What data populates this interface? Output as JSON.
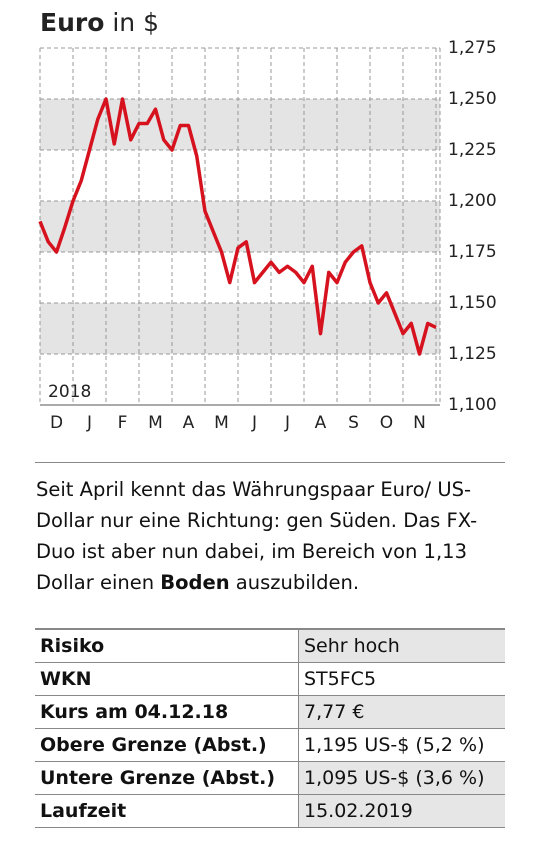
{
  "chart_data": {
    "type": "line",
    "title": [
      "Euro",
      "in $"
    ],
    "annotation": "2018",
    "categories": [
      null,
      null,
      "D",
      null,
      null,
      null,
      "J",
      null,
      null,
      null,
      "F",
      null,
      null,
      null,
      "M",
      null,
      null,
      null,
      "A",
      null,
      null,
      null,
      "M",
      null,
      null,
      null,
      "J",
      null,
      null,
      null,
      "J",
      null,
      null,
      null,
      "A",
      null,
      null,
      null,
      "S",
      null,
      null,
      null,
      "O",
      null,
      null,
      null,
      "N",
      null,
      null
    ],
    "series": [
      {
        "name": "Euro",
        "color": "#d7121f",
        "values": [
          1.19,
          1.18,
          1.175,
          1.187,
          1.2,
          1.21,
          1.225,
          1.24,
          1.25,
          1.228,
          1.25,
          1.23,
          1.238,
          1.238,
          1.245,
          1.23,
          1.225,
          1.237,
          1.237,
          1.222,
          1.195,
          1.185,
          1.175,
          1.16,
          1.177,
          1.18,
          1.16,
          1.165,
          1.17,
          1.165,
          1.168,
          1.165,
          1.16,
          1.168,
          1.135,
          1.165,
          1.16,
          1.17,
          1.175,
          1.178,
          1.16,
          1.15,
          1.155,
          1.145,
          1.135,
          1.14,
          1.125,
          1.14,
          1.138
        ]
      }
    ],
    "ylim": [
      1.1,
      1.275
    ],
    "yticks": [
      {
        "value": 1.1,
        "label": "1,100"
      },
      {
        "value": 1.125,
        "label": "1,125"
      },
      {
        "value": 1.15,
        "label": "1,150"
      },
      {
        "value": 1.175,
        "label": "1,175"
      },
      {
        "value": 1.2,
        "label": "1,200"
      },
      {
        "value": 1.225,
        "label": "1,225"
      },
      {
        "value": 1.25,
        "label": "1,250"
      },
      {
        "value": 1.275,
        "label": "1,275"
      }
    ],
    "grid": true
  },
  "paragraph": [
    "Seit April kennt das Währungspaar Euro/ US-Dollar nur eine Richtung: gen Süden. Das FX-Duo ist aber nun dabei, im Bereich von 1,13 Dollar einen ",
    "Boden",
    " auszubilden."
  ],
  "table": {
    "rows": [
      [
        "Risiko",
        "Sehr hoch"
      ],
      [
        "WKN",
        "ST5FC5"
      ],
      [
        "Kurs am 04.12.18",
        "7,77 €"
      ],
      [
        "Obere Grenze (Abst.)",
        "1,195 US-$ (5,2 %)"
      ],
      [
        "Untere Grenze (Abst.)",
        "1,095 US-$ (3,6 %)"
      ],
      [
        "Laufzeit",
        "15.02.2019"
      ]
    ]
  }
}
